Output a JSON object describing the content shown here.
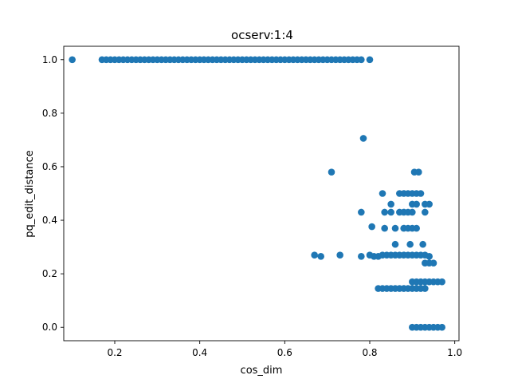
{
  "chart_data": {
    "type": "scatter",
    "title": "ocserv:1:4",
    "xlabel": "cos_dim",
    "ylabel": "pq_edit_distance",
    "xlim": [
      0.08,
      1.01
    ],
    "ylim": [
      -0.05,
      1.05
    ],
    "xticks": [
      "0.2",
      "0.4",
      "0.6",
      "0.8",
      "1.0"
    ],
    "yticks": [
      "0.0",
      "0.2",
      "0.4",
      "0.6",
      "0.8",
      "1.0"
    ],
    "grid": false,
    "marker_color": "#1f77b4",
    "series": [
      {
        "points": [
          [
            0.1,
            1.0
          ],
          [
            0.17,
            1.0
          ],
          [
            0.18,
            1.0
          ],
          [
            0.19,
            1.0
          ],
          [
            0.2,
            1.0
          ],
          [
            0.21,
            1.0
          ],
          [
            0.22,
            1.0
          ],
          [
            0.23,
            1.0
          ],
          [
            0.24,
            1.0
          ],
          [
            0.25,
            1.0
          ],
          [
            0.26,
            1.0
          ],
          [
            0.27,
            1.0
          ],
          [
            0.28,
            1.0
          ],
          [
            0.29,
            1.0
          ],
          [
            0.3,
            1.0
          ],
          [
            0.31,
            1.0
          ],
          [
            0.32,
            1.0
          ],
          [
            0.33,
            1.0
          ],
          [
            0.34,
            1.0
          ],
          [
            0.35,
            1.0
          ],
          [
            0.36,
            1.0
          ],
          [
            0.37,
            1.0
          ],
          [
            0.38,
            1.0
          ],
          [
            0.39,
            1.0
          ],
          [
            0.4,
            1.0
          ],
          [
            0.41,
            1.0
          ],
          [
            0.42,
            1.0
          ],
          [
            0.43,
            1.0
          ],
          [
            0.44,
            1.0
          ],
          [
            0.45,
            1.0
          ],
          [
            0.46,
            1.0
          ],
          [
            0.47,
            1.0
          ],
          [
            0.48,
            1.0
          ],
          [
            0.49,
            1.0
          ],
          [
            0.5,
            1.0
          ],
          [
            0.51,
            1.0
          ],
          [
            0.52,
            1.0
          ],
          [
            0.53,
            1.0
          ],
          [
            0.54,
            1.0
          ],
          [
            0.55,
            1.0
          ],
          [
            0.56,
            1.0
          ],
          [
            0.57,
            1.0
          ],
          [
            0.58,
            1.0
          ],
          [
            0.59,
            1.0
          ],
          [
            0.6,
            1.0
          ],
          [
            0.61,
            1.0
          ],
          [
            0.62,
            1.0
          ],
          [
            0.63,
            1.0
          ],
          [
            0.64,
            1.0
          ],
          [
            0.65,
            1.0
          ],
          [
            0.66,
            1.0
          ],
          [
            0.67,
            1.0
          ],
          [
            0.68,
            1.0
          ],
          [
            0.69,
            1.0
          ],
          [
            0.7,
            1.0
          ],
          [
            0.71,
            1.0
          ],
          [
            0.72,
            1.0
          ],
          [
            0.73,
            1.0
          ],
          [
            0.74,
            1.0
          ],
          [
            0.75,
            1.0
          ],
          [
            0.76,
            1.0
          ],
          [
            0.77,
            1.0
          ],
          [
            0.78,
            1.0
          ],
          [
            0.8,
            1.0
          ],
          [
            0.785,
            0.706
          ],
          [
            0.71,
            0.58
          ],
          [
            0.905,
            0.58
          ],
          [
            0.915,
            0.58
          ],
          [
            0.83,
            0.5
          ],
          [
            0.87,
            0.5
          ],
          [
            0.88,
            0.5
          ],
          [
            0.89,
            0.5
          ],
          [
            0.9,
            0.5
          ],
          [
            0.91,
            0.5
          ],
          [
            0.92,
            0.5
          ],
          [
            0.85,
            0.46
          ],
          [
            0.9,
            0.46
          ],
          [
            0.91,
            0.46
          ],
          [
            0.93,
            0.46
          ],
          [
            0.94,
            0.46
          ],
          [
            0.78,
            0.43
          ],
          [
            0.835,
            0.43
          ],
          [
            0.85,
            0.43
          ],
          [
            0.87,
            0.43
          ],
          [
            0.88,
            0.43
          ],
          [
            0.89,
            0.43
          ],
          [
            0.9,
            0.43
          ],
          [
            0.93,
            0.43
          ],
          [
            0.805,
            0.376
          ],
          [
            0.835,
            0.37
          ],
          [
            0.86,
            0.37
          ],
          [
            0.88,
            0.37
          ],
          [
            0.89,
            0.37
          ],
          [
            0.9,
            0.37
          ],
          [
            0.91,
            0.37
          ],
          [
            0.86,
            0.31
          ],
          [
            0.895,
            0.31
          ],
          [
            0.925,
            0.31
          ],
          [
            0.67,
            0.27
          ],
          [
            0.685,
            0.265
          ],
          [
            0.73,
            0.27
          ],
          [
            0.78,
            0.265
          ],
          [
            0.8,
            0.27
          ],
          [
            0.81,
            0.265
          ],
          [
            0.82,
            0.265
          ],
          [
            0.83,
            0.27
          ],
          [
            0.84,
            0.27
          ],
          [
            0.85,
            0.27
          ],
          [
            0.86,
            0.27
          ],
          [
            0.87,
            0.27
          ],
          [
            0.88,
            0.27
          ],
          [
            0.89,
            0.27
          ],
          [
            0.9,
            0.27
          ],
          [
            0.91,
            0.27
          ],
          [
            0.92,
            0.27
          ],
          [
            0.93,
            0.27
          ],
          [
            0.94,
            0.265
          ],
          [
            0.93,
            0.24
          ],
          [
            0.94,
            0.24
          ],
          [
            0.95,
            0.24
          ],
          [
            0.9,
            0.17
          ],
          [
            0.91,
            0.17
          ],
          [
            0.92,
            0.17
          ],
          [
            0.93,
            0.17
          ],
          [
            0.94,
            0.17
          ],
          [
            0.95,
            0.17
          ],
          [
            0.96,
            0.17
          ],
          [
            0.97,
            0.17
          ],
          [
            0.82,
            0.145
          ],
          [
            0.83,
            0.145
          ],
          [
            0.84,
            0.145
          ],
          [
            0.85,
            0.145
          ],
          [
            0.86,
            0.145
          ],
          [
            0.87,
            0.145
          ],
          [
            0.88,
            0.145
          ],
          [
            0.89,
            0.145
          ],
          [
            0.9,
            0.145
          ],
          [
            0.91,
            0.145
          ],
          [
            0.92,
            0.145
          ],
          [
            0.93,
            0.145
          ],
          [
            0.9,
            0.0
          ],
          [
            0.91,
            0.0
          ],
          [
            0.92,
            0.0
          ],
          [
            0.93,
            0.0
          ],
          [
            0.94,
            0.0
          ],
          [
            0.95,
            0.0
          ],
          [
            0.96,
            0.0
          ],
          [
            0.97,
            0.0
          ]
        ]
      }
    ]
  }
}
